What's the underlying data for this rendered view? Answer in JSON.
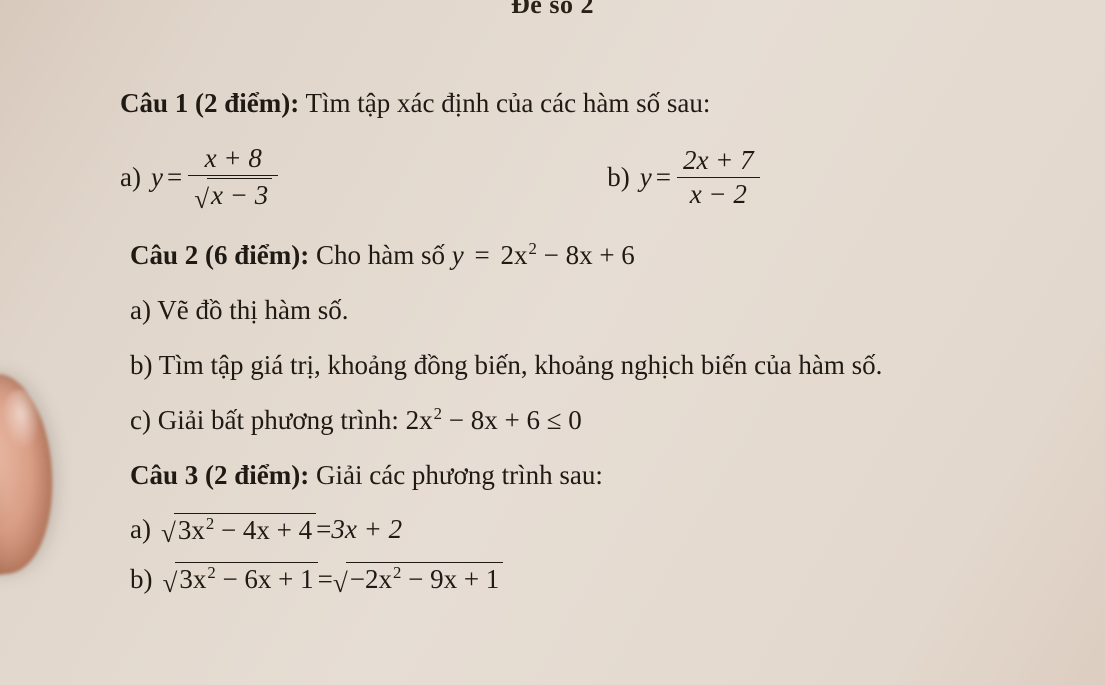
{
  "header": {
    "title": "Đề số 2"
  },
  "q1": {
    "heading_bold": "Câu 1 (2 điểm):",
    "heading_rest": " Tìm tập xác định của các hàm số sau:",
    "a": {
      "label": "a)",
      "lhs": "y",
      "eq": "=",
      "num": "x + 8",
      "den_pre_rad": "",
      "den_radicand": "x − 3"
    },
    "b": {
      "label": "b)",
      "lhs": "y",
      "eq": "=",
      "num": "2x + 7",
      "den": "x − 2"
    }
  },
  "q2": {
    "heading_bold": "Câu 2 (6 điểm):",
    "heading_rest": " Cho hàm số ",
    "fn_lhs": "y",
    "fn_eq": "=",
    "fn_rhs_a": "2x",
    "fn_rhs_exp": "2",
    "fn_rhs_b": " − 8x + 6",
    "a": "a) Vẽ đồ thị hàm số.",
    "b": "b) Tìm tập giá trị, khoảng đồng biến, khoảng nghịch biến của hàm số.",
    "c_label": "c) Giải bất phương trình: ",
    "c_lhs_a": "2x",
    "c_lhs_exp": "2",
    "c_lhs_b": " − 8x + 6",
    "c_rel": " ≤ 0"
  },
  "q3": {
    "heading_bold": "Câu 3 (2 điểm):",
    "heading_rest": " Giải các phương trình sau:",
    "a": {
      "label": "a)",
      "rad_a": "3x",
      "rad_exp": "2",
      "rad_b": " − 4x + 4",
      "eq": " = ",
      "rhs": "3x + 2"
    },
    "b": {
      "label": "b)",
      "rad1_a": "3x",
      "rad1_exp": "2",
      "rad1_b": " − 6x + 1",
      "eq": " = ",
      "rad2_a": "−2x",
      "rad2_exp": "2",
      "rad2_b": " − 9x + 1"
    }
  }
}
